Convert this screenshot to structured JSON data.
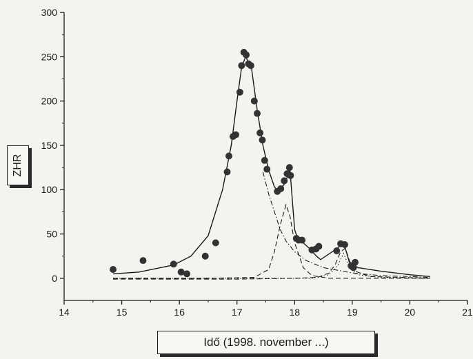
{
  "chart_data": {
    "type": "scatter",
    "xlabel": "Idő (1998. november ...)",
    "ylabel": "ZHR",
    "xlim": [
      14,
      21
    ],
    "ylim": [
      -25,
      300
    ],
    "xticks": [
      14,
      15,
      16,
      17,
      18,
      19,
      20,
      21
    ],
    "yticks": [
      0,
      50,
      100,
      150,
      200,
      250,
      300
    ],
    "grid": false,
    "colors": {
      "ink": "#1a1a1a",
      "points": "#333333"
    },
    "series": [
      {
        "style": "points",
        "points": [
          [
            14.85,
            10
          ],
          [
            15.37,
            20
          ],
          [
            15.9,
            16
          ],
          [
            16.03,
            7
          ],
          [
            16.13,
            5
          ],
          [
            16.45,
            25
          ],
          [
            16.63,
            40
          ],
          [
            16.83,
            120
          ],
          [
            16.86,
            138
          ],
          [
            16.93,
            160
          ],
          [
            16.98,
            162
          ],
          [
            17.05,
            210
          ],
          [
            17.08,
            240
          ],
          [
            17.12,
            255
          ],
          [
            17.16,
            252
          ],
          [
            17.2,
            242
          ],
          [
            17.24,
            240
          ],
          [
            17.3,
            200
          ],
          [
            17.35,
            186
          ],
          [
            17.4,
            164
          ],
          [
            17.44,
            156
          ],
          [
            17.48,
            133
          ],
          [
            17.52,
            123
          ],
          [
            17.7,
            98
          ],
          [
            17.76,
            101
          ],
          [
            17.82,
            110
          ],
          [
            17.87,
            118
          ],
          [
            17.91,
            125
          ],
          [
            17.93,
            116
          ],
          [
            18.03,
            45
          ],
          [
            18.07,
            43
          ],
          [
            18.13,
            43
          ],
          [
            18.3,
            32
          ],
          [
            18.37,
            33
          ],
          [
            18.42,
            36
          ],
          [
            18.73,
            31
          ],
          [
            18.8,
            39
          ],
          [
            18.87,
            38
          ],
          [
            18.98,
            14
          ],
          [
            19.02,
            12
          ],
          [
            19.05,
            18
          ]
        ]
      },
      {
        "style": "solid",
        "points": [
          [
            14.85,
            5
          ],
          [
            15.3,
            7
          ],
          [
            15.9,
            15
          ],
          [
            16.2,
            25
          ],
          [
            16.5,
            48
          ],
          [
            16.75,
            100
          ],
          [
            16.9,
            150
          ],
          [
            17.0,
            200
          ],
          [
            17.08,
            238
          ],
          [
            17.15,
            250
          ],
          [
            17.25,
            238
          ],
          [
            17.35,
            190
          ],
          [
            17.45,
            150
          ],
          [
            17.55,
            122
          ],
          [
            17.65,
            103
          ],
          [
            17.72,
            98
          ],
          [
            17.82,
            106
          ],
          [
            17.92,
            122
          ],
          [
            18.0,
            55
          ],
          [
            18.05,
            45
          ],
          [
            18.15,
            40
          ],
          [
            18.25,
            34
          ],
          [
            18.38,
            25
          ],
          [
            18.45,
            21
          ],
          [
            18.7,
            32
          ],
          [
            18.8,
            37
          ],
          [
            18.87,
            36
          ],
          [
            18.95,
            18
          ],
          [
            19.1,
            12
          ],
          [
            19.5,
            8
          ],
          [
            20.0,
            4
          ],
          [
            20.35,
            2
          ]
        ]
      },
      {
        "style": "dash-dot",
        "points": [
          [
            17.45,
            120
          ],
          [
            17.55,
            95
          ],
          [
            17.65,
            75
          ],
          [
            17.75,
            55
          ],
          [
            17.85,
            42
          ],
          [
            18.0,
            30
          ],
          [
            18.2,
            20
          ],
          [
            18.5,
            12
          ],
          [
            19.0,
            6
          ],
          [
            19.5,
            3
          ],
          [
            20.0,
            2
          ],
          [
            20.35,
            1
          ]
        ]
      },
      {
        "style": "dashed",
        "points": [
          [
            14.85,
            0
          ],
          [
            16.5,
            0
          ],
          [
            17.3,
            1
          ],
          [
            17.55,
            10
          ],
          [
            17.65,
            30
          ],
          [
            17.75,
            60
          ],
          [
            17.85,
            83
          ],
          [
            17.92,
            70
          ],
          [
            18.0,
            40
          ],
          [
            18.15,
            12
          ],
          [
            18.3,
            3
          ],
          [
            18.6,
            0
          ],
          [
            20.35,
            0
          ]
        ]
      },
      {
        "style": "dashed",
        "points": [
          [
            14.85,
            -1
          ],
          [
            17.0,
            -1
          ],
          [
            18.0,
            0
          ],
          [
            18.4,
            1
          ],
          [
            18.6,
            6
          ],
          [
            18.7,
            15
          ],
          [
            18.8,
            30
          ],
          [
            18.88,
            34
          ],
          [
            18.95,
            20
          ],
          [
            19.05,
            8
          ],
          [
            19.3,
            2
          ],
          [
            20.35,
            0
          ]
        ]
      },
      {
        "style": "dotted",
        "points": [
          [
            14.85,
            0
          ],
          [
            16.5,
            0
          ],
          [
            17.5,
            0
          ],
          [
            18.3,
            0
          ],
          [
            18.6,
            4
          ],
          [
            18.75,
            15
          ],
          [
            18.85,
            28
          ],
          [
            18.95,
            12
          ],
          [
            19.1,
            4
          ],
          [
            19.5,
            1
          ],
          [
            20.35,
            0
          ]
        ]
      }
    ]
  }
}
